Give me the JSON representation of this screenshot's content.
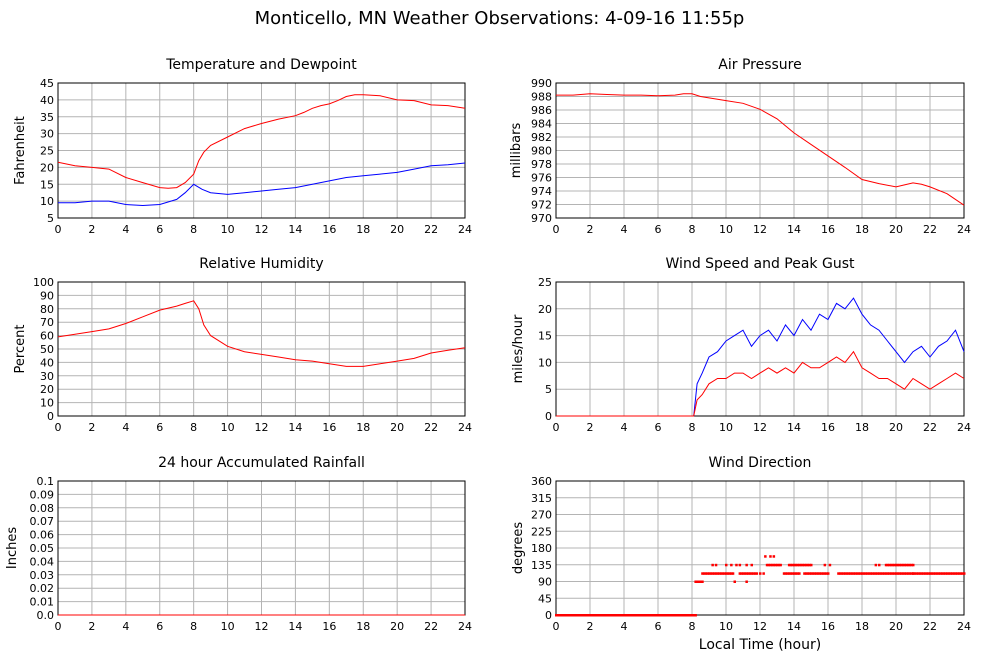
{
  "page_title": "Monticello, MN Weather Observations: 4-09-16 11:55p",
  "colors": {
    "red": "#ff0000",
    "blue": "#0000ff",
    "grid": "#b4b4b4",
    "frame": "#000000"
  },
  "chart_data": [
    {
      "id": "temp",
      "type": "line",
      "title": "Temperature and Dewpoint",
      "xlabel": "",
      "ylabel": "Fahrenheit",
      "xlim": [
        0,
        24
      ],
      "ylim": [
        5,
        45
      ],
      "xticks": [
        0,
        2,
        4,
        6,
        8,
        10,
        12,
        14,
        16,
        18,
        20,
        22,
        24
      ],
      "yticks": [
        5,
        10,
        15,
        20,
        25,
        30,
        35,
        40,
        45
      ],
      "grid": true,
      "series": [
        {
          "color": "#ff0000",
          "x": [
            0,
            1,
            2,
            3,
            4,
            5,
            6,
            6.5,
            7,
            7.5,
            8,
            8.3,
            8.6,
            9,
            10,
            11,
            12,
            13,
            14,
            14.5,
            15,
            15.5,
            16,
            16.5,
            17,
            17.5,
            18,
            19,
            20,
            21,
            22,
            23,
            24
          ],
          "y": [
            21.5,
            20.5,
            20,
            19.5,
            17,
            15.5,
            14,
            13.8,
            14,
            15.5,
            18,
            22,
            24.5,
            26.5,
            29,
            31.5,
            33,
            34.3,
            35.3,
            36.3,
            37.5,
            38.3,
            38.8,
            39.8,
            41,
            41.5,
            41.5,
            41.2,
            40,
            39.8,
            38.5,
            38.3,
            37.5
          ]
        },
        {
          "color": "#0000ff",
          "x": [
            0,
            1,
            2,
            3,
            4,
            5,
            6,
            7,
            7.5,
            8,
            8.5,
            9,
            10,
            11,
            12,
            13,
            14,
            15,
            16,
            17,
            18,
            19,
            20,
            21,
            22,
            23,
            24
          ],
          "y": [
            9.5,
            9.5,
            10,
            10,
            9,
            8.7,
            9,
            10.5,
            12.5,
            15,
            13.5,
            12.5,
            12,
            12.5,
            13,
            13.5,
            14,
            15,
            16,
            17,
            17.5,
            18,
            18.5,
            19.5,
            20.5,
            20.8,
            21.3
          ]
        }
      ]
    },
    {
      "id": "pressure",
      "type": "line",
      "title": "Air Pressure",
      "xlabel": "",
      "ylabel": "millibars",
      "xlim": [
        0,
        24
      ],
      "ylim": [
        970,
        990
      ],
      "xticks": [
        0,
        2,
        4,
        6,
        8,
        10,
        12,
        14,
        16,
        18,
        20,
        22,
        24
      ],
      "yticks": [
        970,
        972,
        974,
        976,
        978,
        980,
        982,
        984,
        986,
        988,
        990
      ],
      "grid": true,
      "series": [
        {
          "color": "#ff0000",
          "x": [
            0,
            1,
            2,
            3,
            4,
            5,
            6,
            7,
            7.5,
            8,
            8.5,
            9,
            10,
            11,
            12,
            13,
            14,
            15,
            16,
            17,
            18,
            19,
            20,
            20.5,
            21,
            21.5,
            22,
            23,
            24
          ],
          "y": [
            988.2,
            988.2,
            988.4,
            988.3,
            988.2,
            988.2,
            988.1,
            988.2,
            988.4,
            988.4,
            988,
            987.8,
            987.4,
            987,
            986.1,
            984.7,
            982.6,
            980.9,
            979.2,
            977.5,
            975.7,
            975.1,
            974.6,
            974.9,
            975.2,
            975.0,
            974.6,
            973.6,
            971.9
          ]
        }
      ]
    },
    {
      "id": "humidity",
      "type": "line",
      "title": "Relative Humidity",
      "xlabel": "",
      "ylabel": "Percent",
      "xlim": [
        0,
        24
      ],
      "ylim": [
        0,
        100
      ],
      "xticks": [
        0,
        2,
        4,
        6,
        8,
        10,
        12,
        14,
        16,
        18,
        20,
        22,
        24
      ],
      "yticks": [
        0,
        10,
        20,
        30,
        40,
        50,
        60,
        70,
        80,
        90,
        100
      ],
      "grid": true,
      "series": [
        {
          "color": "#ff0000",
          "x": [
            0,
            1,
            2,
            3,
            4,
            5,
            6,
            7,
            7.5,
            8,
            8.3,
            8.6,
            9,
            10,
            11,
            12,
            13,
            14,
            15,
            16,
            17,
            18,
            19,
            20,
            21,
            22,
            23,
            24
          ],
          "y": [
            59,
            61,
            63,
            65,
            69,
            74,
            79,
            82,
            84,
            86,
            80,
            68,
            60,
            52,
            48,
            46,
            44,
            42,
            41,
            39,
            37,
            37,
            39,
            41,
            43,
            47,
            49,
            51
          ]
        }
      ]
    },
    {
      "id": "wind",
      "type": "line",
      "title": "Wind Speed and Peak Gust",
      "xlabel": "",
      "ylabel": "miles/hour",
      "xlim": [
        0,
        24
      ],
      "ylim": [
        0,
        25
      ],
      "xticks": [
        0,
        2,
        4,
        6,
        8,
        10,
        12,
        14,
        16,
        18,
        20,
        22,
        24
      ],
      "yticks": [
        0,
        5,
        10,
        15,
        20,
        25
      ],
      "grid": true,
      "series": [
        {
          "color": "#0000ff",
          "x": [
            0,
            8.1,
            8.3,
            8.6,
            9,
            9.5,
            10,
            10.5,
            11,
            11.5,
            12,
            12.5,
            13,
            13.5,
            14,
            14.5,
            15,
            15.5,
            16,
            16.5,
            17,
            17.5,
            18,
            18.5,
            19,
            19.5,
            20,
            20.5,
            21,
            21.5,
            22,
            22.5,
            23,
            23.5,
            24
          ],
          "y": [
            0,
            0,
            6,
            8,
            11,
            12,
            14,
            15,
            16,
            13,
            15,
            16,
            14,
            17,
            15,
            18,
            16,
            19,
            18,
            21,
            20,
            22,
            19,
            17,
            16,
            14,
            12,
            10,
            12,
            13,
            11,
            13,
            14,
            16,
            12
          ]
        },
        {
          "color": "#ff0000",
          "x": [
            0,
            8.1,
            8.3,
            8.6,
            9,
            9.5,
            10,
            10.5,
            11,
            11.5,
            12,
            12.5,
            13,
            13.5,
            14,
            14.5,
            15,
            15.5,
            16,
            16.5,
            17,
            17.5,
            18,
            18.5,
            19,
            19.5,
            20,
            20.5,
            21,
            21.5,
            22,
            22.5,
            23,
            23.5,
            24
          ],
          "y": [
            0,
            0,
            3,
            4,
            6,
            7,
            7,
            8,
            8,
            7,
            8,
            9,
            8,
            9,
            8,
            10,
            9,
            9,
            10,
            11,
            10,
            12,
            9,
            8,
            7,
            7,
            6,
            5,
            7,
            6,
            5,
            6,
            7,
            8,
            7
          ]
        }
      ]
    },
    {
      "id": "rain",
      "type": "line",
      "title": "24 hour Accumulated Rainfall",
      "xlabel": "",
      "ylabel": "Inches",
      "xlim": [
        0,
        24
      ],
      "ylim": [
        0,
        0.1
      ],
      "xticks": [
        0,
        2,
        4,
        6,
        8,
        10,
        12,
        14,
        16,
        18,
        20,
        22,
        24
      ],
      "yticks": [
        0,
        0.01,
        0.02,
        0.03,
        0.04,
        0.05,
        0.06,
        0.07,
        0.08,
        0.09,
        0.1
      ],
      "ytick_labels": [
        "0.0",
        "0.01",
        "0.02",
        "0.03",
        "0.04",
        "0.05",
        "0.06",
        "0.07",
        "0.08",
        "0.09",
        "0.1"
      ],
      "grid": true,
      "series": [
        {
          "color": "#ff0000",
          "x": [
            0,
            24
          ],
          "y": [
            0,
            0
          ]
        }
      ]
    },
    {
      "id": "direction",
      "type": "scatter",
      "title": "Wind Direction",
      "xlabel": "Local Time (hour)",
      "ylabel": "degrees",
      "xlim": [
        0,
        24
      ],
      "ylim": [
        0,
        360
      ],
      "xticks": [
        0,
        2,
        4,
        6,
        8,
        10,
        12,
        14,
        16,
        18,
        20,
        22,
        24
      ],
      "yticks": [
        0,
        45,
        90,
        135,
        180,
        225,
        270,
        315,
        360
      ],
      "grid": true,
      "segments": [
        {
          "x0": 0,
          "x1": 8.2,
          "y": 0
        },
        {
          "x0": 8.2,
          "x1": 8.6,
          "y": 90
        },
        {
          "x0": 8.6,
          "x1": 10.4,
          "y": 112
        },
        {
          "x0": 10.8,
          "x1": 11.8,
          "y": 112
        },
        {
          "x0": 12.4,
          "x1": 13.2,
          "y": 135
        },
        {
          "x0": 13.4,
          "x1": 14.3,
          "y": 112
        },
        {
          "x0": 13.7,
          "x1": 15.0,
          "y": 135
        },
        {
          "x0": 14.6,
          "x1": 16.0,
          "y": 112
        },
        {
          "x0": 16.6,
          "x1": 21.0,
          "y": 112
        },
        {
          "x0": 19.4,
          "x1": 21.0,
          "y": 135
        },
        {
          "x0": 21.0,
          "x1": 24.0,
          "y": 112
        }
      ],
      "points": [
        {
          "x": 9.2,
          "y": 135
        },
        {
          "x": 9.4,
          "y": 135
        },
        {
          "x": 10.0,
          "y": 135
        },
        {
          "x": 10.3,
          "y": 135
        },
        {
          "x": 10.6,
          "y": 135
        },
        {
          "x": 10.8,
          "y": 135
        },
        {
          "x": 11.2,
          "y": 135
        },
        {
          "x": 11.5,
          "y": 135
        },
        {
          "x": 10.5,
          "y": 90
        },
        {
          "x": 11.2,
          "y": 90
        },
        {
          "x": 12.0,
          "y": 112
        },
        {
          "x": 12.2,
          "y": 112
        },
        {
          "x": 12.3,
          "y": 158
        },
        {
          "x": 12.6,
          "y": 158
        },
        {
          "x": 12.8,
          "y": 158
        },
        {
          "x": 15.8,
          "y": 135
        },
        {
          "x": 16.1,
          "y": 135
        },
        {
          "x": 18.8,
          "y": 135
        },
        {
          "x": 19.0,
          "y": 135
        }
      ]
    }
  ]
}
